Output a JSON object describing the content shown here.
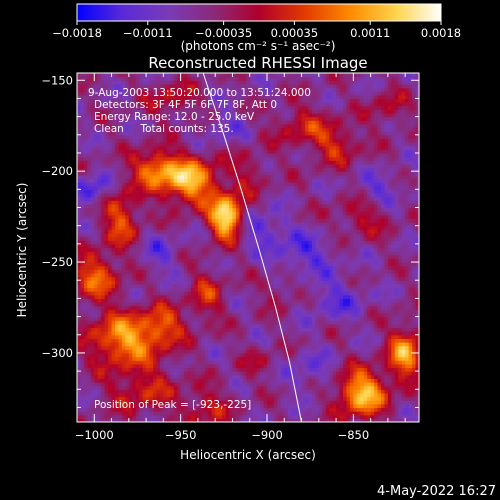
{
  "chart_data": {
    "type": "heatmap",
    "title": "Reconstructed RHESSI Image",
    "xlabel": "Heliocentric X (arcsec)",
    "ylabel": "Heliocentric Y (arcsec)",
    "xlim": [
      -1010,
      -812
    ],
    "ylim": [
      -338,
      -146
    ],
    "x_ticks": [
      -1000,
      -950,
      -900,
      -850
    ],
    "x_tick_labels": [
      "−1000",
      "−950",
      "−900",
      "−850"
    ],
    "y_ticks": [
      -150,
      -200,
      -250,
      -300
    ],
    "y_tick_labels": [
      "−150",
      "−200",
      "−250",
      "−300"
    ],
    "colorbar": {
      "range": [
        -0.0018,
        0.0018
      ],
      "ticks": [
        -0.0018,
        -0.0011,
        -0.00035,
        0.00035,
        0.0011,
        0.0018
      ],
      "tick_labels": [
        "−0.0018",
        "−0.0011",
        "−0.00035",
        "0.00035",
        "0.0011",
        "0.0018"
      ],
      "units": "(photons cm⁻² s⁻¹ asec⁻²)",
      "stops": [
        "#0000ff",
        "#5a2ad8",
        "#7a3bb8",
        "#8a2a7a",
        "#b0002a",
        "#e23a00",
        "#ff8a00",
        "#ffd34a",
        "#ffffff"
      ]
    },
    "annotations": {
      "time_range": "9-Aug-2003 13:50:20.000 to 13:51:24.000",
      "detectors": "Detectors: 3F 4F 5F 6F 7F 8F, Att 0",
      "energy": "Energy Range: 12.0 - 25.0 keV",
      "clean": "Clean     Total counts: 135.",
      "peak": "Position of Peak = [-923,-225]"
    },
    "limb_line": [
      [
        -937,
        -146
      ],
      [
        -925,
        -180
      ],
      [
        -915,
        -210
      ],
      [
        -904,
        -245
      ],
      [
        -895,
        -275
      ],
      [
        -887,
        -305
      ],
      [
        -880,
        -338
      ]
    ],
    "background_level": -0.0006,
    "sources": [
      {
        "x": -923,
        "y": -225,
        "sx": 7,
        "sy": 8,
        "amp": 0.0024
      },
      {
        "x": -945,
        "y": -205,
        "sx": 12,
        "sy": 9,
        "amp": 0.0018
      },
      {
        "x": -965,
        "y": -198,
        "sx": 9,
        "sy": 7,
        "amp": 0.0013
      },
      {
        "x": -985,
        "y": -225,
        "sx": 8,
        "sy": 12,
        "amp": 0.0011
      },
      {
        "x": -1000,
        "y": -258,
        "sx": 10,
        "sy": 9,
        "amp": 0.0012
      },
      {
        "x": -983,
        "y": -292,
        "sx": 14,
        "sy": 10,
        "amp": 0.0016
      },
      {
        "x": -960,
        "y": -285,
        "sx": 9,
        "sy": 8,
        "amp": 0.001
      },
      {
        "x": -935,
        "y": -268,
        "sx": 7,
        "sy": 10,
        "amp": 0.0008
      },
      {
        "x": -972,
        "y": -320,
        "sx": 14,
        "sy": 10,
        "amp": 0.0008
      },
      {
        "x": -935,
        "y": -330,
        "sx": 10,
        "sy": 8,
        "amp": 0.0007
      },
      {
        "x": -880,
        "y": -175,
        "sx": 12,
        "sy": 8,
        "amp": 0.0007
      },
      {
        "x": -860,
        "y": -185,
        "sx": 10,
        "sy": 8,
        "amp": 0.0008
      },
      {
        "x": -830,
        "y": -165,
        "sx": 8,
        "sy": 7,
        "amp": 0.0006
      },
      {
        "x": -845,
        "y": -225,
        "sx": 12,
        "sy": 8,
        "amp": 0.0006
      },
      {
        "x": -910,
        "y": -200,
        "sx": 8,
        "sy": 8,
        "amp": 0.0005
      },
      {
        "x": -892,
        "y": -265,
        "sx": 8,
        "sy": 7,
        "amp": 0.0004
      },
      {
        "x": -845,
        "y": -322,
        "sx": 10,
        "sy": 9,
        "amp": 0.0019
      },
      {
        "x": -820,
        "y": -300,
        "sx": 7,
        "sy": 10,
        "amp": 0.0016
      },
      {
        "x": -955,
        "y": -160,
        "sx": 10,
        "sy": 7,
        "amp": 0.0007
      },
      {
        "x": -905,
        "y": -305,
        "sx": 8,
        "sy": 6,
        "amp": 0.0004
      }
    ],
    "dark_spots": [
      {
        "x": -1000,
        "y": -210,
        "sx": 8,
        "sy": 6,
        "amp": 0.0009
      },
      {
        "x": -905,
        "y": -230,
        "sx": 10,
        "sy": 6,
        "amp": 0.0008
      },
      {
        "x": -880,
        "y": -245,
        "sx": 14,
        "sy": 8,
        "amp": 0.0007
      },
      {
        "x": -860,
        "y": -270,
        "sx": 12,
        "sy": 8,
        "amp": 0.0006
      },
      {
        "x": -925,
        "y": -175,
        "sx": 8,
        "sy": 6,
        "amp": 0.0005
      },
      {
        "x": -835,
        "y": -210,
        "sx": 10,
        "sy": 6,
        "amp": 0.0006
      },
      {
        "x": -875,
        "y": -310,
        "sx": 10,
        "sy": 8,
        "amp": 0.0005
      },
      {
        "x": -962,
        "y": -245,
        "sx": 8,
        "sy": 8,
        "amp": 0.0005
      }
    ]
  },
  "footer": {
    "date": "4-May-2022 16:27"
  }
}
